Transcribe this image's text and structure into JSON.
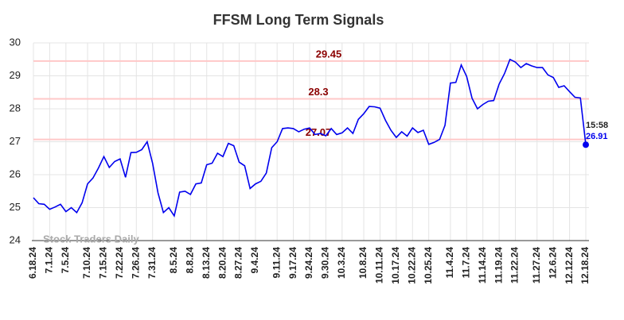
{
  "chart_data": {
    "type": "line",
    "title": "FFSM Long Term Signals",
    "watermark": "Stock Traders Daily",
    "categories": [
      "6.18.24",
      null,
      null,
      "7.1.24",
      null,
      null,
      "7.5.24",
      null,
      null,
      null,
      "7.10.24",
      null,
      null,
      "7.15.24",
      null,
      null,
      "7.22.24",
      null,
      null,
      "7.26.24",
      null,
      null,
      "7.31.24",
      null,
      null,
      null,
      "8.5.24",
      null,
      null,
      "8.8.24",
      null,
      null,
      "8.13.24",
      null,
      null,
      "8.20.24",
      null,
      null,
      "8.27.24",
      null,
      null,
      "9.4.24",
      null,
      null,
      null,
      "9.11.24",
      null,
      null,
      "9.17.24",
      null,
      null,
      "9.24.24",
      null,
      null,
      "9.30.24",
      null,
      null,
      "10.3.24",
      null,
      null,
      null,
      "10.8.24",
      null,
      null,
      "10.11.24",
      null,
      null,
      "10.17.24",
      null,
      null,
      "10.22.24",
      null,
      null,
      "10.25.24",
      null,
      null,
      null,
      "11.4.24",
      null,
      null,
      "11.7.24",
      null,
      null,
      "11.14.24",
      null,
      null,
      "11.19.24",
      null,
      null,
      "11.22.24",
      null,
      null,
      null,
      "11.27.24",
      null,
      null,
      "12.6.24",
      null,
      null,
      "12.12.24",
      null,
      null,
      "12.18.24"
    ],
    "series": [
      {
        "color": "#0000ee",
        "values": [
          25.3,
          25.12,
          25.1,
          24.95,
          25.02,
          25.1,
          24.88,
          25.0,
          24.85,
          25.15,
          25.72,
          25.9,
          26.2,
          26.55,
          26.22,
          26.4,
          26.48,
          25.92,
          26.67,
          26.68,
          26.76,
          27.0,
          26.35,
          25.45,
          24.85,
          25.0,
          24.75,
          25.47,
          25.5,
          25.4,
          25.72,
          25.75,
          26.3,
          26.35,
          26.65,
          26.55,
          26.95,
          26.88,
          26.38,
          26.27,
          25.58,
          25.72,
          25.8,
          26.05,
          26.82,
          27.0,
          27.4,
          27.42,
          27.4,
          27.3,
          27.38,
          27.42,
          27.22,
          27.25,
          27.18,
          27.4,
          27.22,
          27.27,
          27.42,
          27.25,
          27.68,
          27.85,
          28.07,
          28.06,
          28.02,
          27.65,
          27.35,
          27.13,
          27.3,
          27.17,
          27.42,
          27.28,
          27.35,
          26.92,
          26.98,
          27.07,
          27.5,
          28.78,
          28.8,
          29.33,
          28.98,
          28.32,
          28.0,
          28.13,
          28.23,
          28.25,
          28.75,
          29.07,
          29.5,
          29.42,
          29.25,
          29.37,
          29.3,
          29.25,
          29.25,
          29.03,
          28.95,
          28.65,
          28.7,
          28.52,
          28.35,
          28.33,
          26.91
        ]
      }
    ],
    "last_time": "15:58",
    "hlines": [
      {
        "value": 29.45,
        "color": "#ffc8c8",
        "label_color": "#8b0000"
      },
      {
        "value": 28.3,
        "color": "#ffc8c8",
        "label_color": "#8b0000"
      },
      {
        "value": 27.07,
        "color": "#ffc8c8",
        "label_color": "#8b0000"
      }
    ],
    "ylim": [
      24,
      30
    ],
    "yticks": [
      24,
      25,
      26,
      27,
      28,
      29,
      30
    ],
    "grid": true
  }
}
